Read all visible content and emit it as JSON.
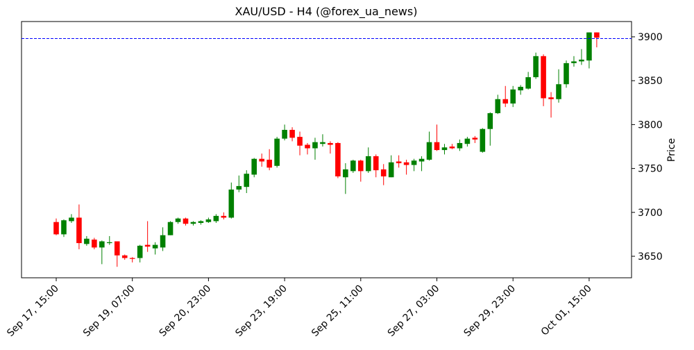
{
  "chart_data": {
    "type": "candlestick",
    "title": "XAU/USD - H4 (@forex_ua_news)",
    "y_label": "Price",
    "categories": [
      "Sep 17, 15:00",
      null,
      null,
      null,
      null,
      null,
      null,
      null,
      null,
      null,
      "Sep 19, 07:00",
      null,
      null,
      null,
      null,
      null,
      null,
      null,
      null,
      null,
      "Sep 20, 23:00",
      null,
      null,
      null,
      null,
      null,
      null,
      null,
      null,
      null,
      "Sep 23, 19:00",
      null,
      null,
      null,
      null,
      null,
      null,
      null,
      null,
      null,
      "Sep 25, 11:00",
      null,
      null,
      null,
      null,
      null,
      null,
      null,
      null,
      null,
      "Sep 27, 03:00",
      null,
      null,
      null,
      null,
      null,
      null,
      null,
      null,
      null,
      "Sep 29, 23:00",
      null,
      null,
      null,
      null,
      null,
      null,
      null,
      null,
      null,
      "Oct 01, 15:00",
      null
    ],
    "open": [
      3689,
      3675,
      3690,
      3694,
      3664,
      3669,
      3660,
      3665,
      3667,
      3651,
      3648,
      3648,
      3663,
      3659,
      3660,
      3674,
      3689,
      3693,
      3687,
      3688,
      3689,
      3690,
      3696,
      3694,
      3726,
      3729,
      3743,
      3761,
      3760,
      3753,
      3784,
      3794,
      3786,
      3777,
      3773,
      3778,
      3779,
      3779,
      3740,
      3747,
      3759,
      3747,
      3764,
      3749,
      3740,
      3758,
      3757,
      3754,
      3758,
      3760,
      3780,
      3771,
      3775,
      3773,
      3778,
      3785,
      3769,
      3795,
      3813,
      3829,
      3824,
      3839,
      3841,
      3854,
      3878,
      3831,
      3829,
      3846,
      3870,
      3872,
      3873,
      3905
    ],
    "high": [
      3693,
      3692,
      3698,
      3709,
      3673,
      3671,
      3668,
      3673,
      3667,
      3652,
      3649,
      3663,
      3690,
      3666,
      3683,
      3690,
      3694,
      3694,
      3690,
      3691,
      3694,
      3698,
      3700,
      3734,
      3742,
      3748,
      3762,
      3767,
      3772,
      3786,
      3800,
      3797,
      3792,
      3779,
      3785,
      3789,
      3781,
      3780,
      3756,
      3760,
      3760,
      3774,
      3766,
      3755,
      3765,
      3765,
      3760,
      3761,
      3764,
      3792,
      3800,
      3778,
      3778,
      3783,
      3786,
      3787,
      3796,
      3814,
      3834,
      3844,
      3844,
      3845,
      3860,
      3882,
      3880,
      3837,
      3863,
      3873,
      3878,
      3886,
      3905,
      3905
    ],
    "low": [
      3674,
      3672,
      3688,
      3658,
      3662,
      3658,
      3641,
      3663,
      3638,
      3646,
      3643,
      3643,
      3655,
      3652,
      3656,
      3674,
      3687,
      3685,
      3685,
      3686,
      3688,
      3688,
      3692,
      3693,
      3723,
      3722,
      3740,
      3752,
      3748,
      3751,
      3782,
      3781,
      3765,
      3766,
      3760,
      3775,
      3767,
      3739,
      3721,
      3745,
      3735,
      3745,
      3740,
      3731,
      3740,
      3751,
      3743,
      3747,
      3747,
      3759,
      3770,
      3766,
      3772,
      3770,
      3775,
      3779,
      3768,
      3776,
      3812,
      3820,
      3820,
      3834,
      3840,
      3852,
      3821,
      3808,
      3825,
      3842,
      3866,
      3868,
      3864,
      3888
    ],
    "close": [
      3675,
      3691,
      3694,
      3665,
      3670,
      3660,
      3667,
      3666,
      3651,
      3648,
      3647,
      3662,
      3661,
      3663,
      3674,
      3689,
      3693,
      3687,
      3689,
      3690,
      3692,
      3696,
      3694,
      3726,
      3730,
      3744,
      3761,
      3758,
      3751,
      3784,
      3794,
      3785,
      3776,
      3773,
      3780,
      3780,
      3777,
      3741,
      3749,
      3759,
      3747,
      3764,
      3748,
      3741,
      3757,
      3756,
      3754,
      3759,
      3761,
      3780,
      3771,
      3774,
      3773,
      3779,
      3784,
      3783,
      3795,
      3813,
      3829,
      3824,
      3840,
      3843,
      3854,
      3878,
      3830,
      3829,
      3846,
      3870,
      3872,
      3874,
      3905,
      3899
    ],
    "up_color": "#008000",
    "down_color": "#ff0000",
    "hline": 3898,
    "hline_color": "#0000ff",
    "ylim": [
      3625.5,
      3917.4
    ],
    "yticks": [
      3650,
      3700,
      3750,
      3800,
      3850,
      3900
    ]
  }
}
